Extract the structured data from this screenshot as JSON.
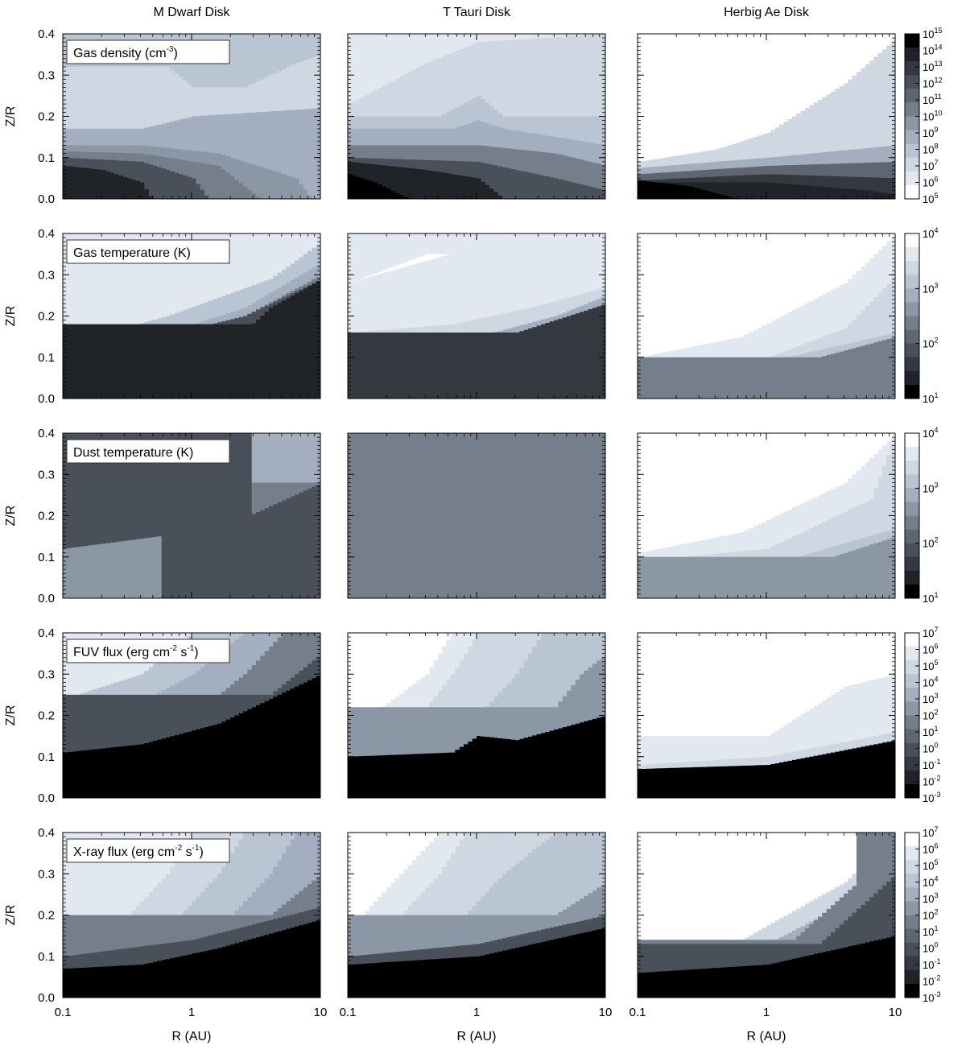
{
  "chart_data": {
    "type": "heatmap",
    "column_titles": [
      "M Dwarf Disk",
      "T Tauri Disk",
      "Herbig Ae Disk"
    ],
    "xlabel": "R (AU)",
    "ylabel": "Z/R",
    "x_scale": "log",
    "xlim": [
      0.1,
      10
    ],
    "ylim": [
      0.0,
      0.4
    ],
    "x_ticks": [
      "0.1",
      "1",
      "10"
    ],
    "y_ticks": [
      "0.0",
      "0.1",
      "0.2",
      "0.3",
      "0.4"
    ],
    "palette": [
      "#000000",
      "#202327",
      "#343940",
      "#4a5059",
      "#5f6672",
      "#757e8b",
      "#8c97a6",
      "#a3afbf",
      "#bac5d3",
      "#ced7e2",
      "#e2e8ef",
      "#ffffff"
    ],
    "rows": [
      {
        "label": {
          "base": "Gas density (cm",
          "sup": "-3",
          "tail": ")"
        },
        "colorbar": {
          "reverse": true,
          "levels": 12,
          "tick_labels": [
            {
              "base": "10",
              "exp": "15"
            },
            {
              "base": "10",
              "exp": "14"
            },
            {
              "base": "10",
              "exp": "13"
            },
            {
              "base": "10",
              "exp": "12"
            },
            {
              "base": "10",
              "exp": "11"
            },
            {
              "base": "10",
              "exp": "10"
            },
            {
              "base": "10",
              "exp": "9"
            },
            {
              "base": "10",
              "exp": "8"
            },
            {
              "base": "10",
              "exp": "7"
            },
            {
              "base": "10",
              "exp": "6"
            },
            {
              "base": "10",
              "exp": "5"
            }
          ]
        },
        "panels": [
          {
            "disk": "M Dwarf Disk",
            "surface_z": 0.4,
            "surface_z_at_1AU": 0.4,
            "surface_z_at_10AU": 0.4
          },
          {
            "disk": "T Tauri Disk",
            "surface_z": 0.4
          },
          {
            "disk": "Herbig Ae Disk",
            "surface_z_at_0_1AU": 0.09,
            "surface_z_at_1AU": 0.16,
            "surface_z_at_10AU": 0.39
          }
        ]
      },
      {
        "label": {
          "base": "Gas temperature (K)",
          "sup": "",
          "tail": ""
        },
        "colorbar": {
          "levels": 12,
          "tick_labels": [
            {
              "base": "10",
              "exp": "4"
            },
            {
              "base": "10",
              "exp": "3"
            },
            {
              "base": "10",
              "exp": "2"
            },
            {
              "base": "10",
              "exp": "1"
            }
          ]
        },
        "panels": [
          {
            "disk": "M Dwarf Disk",
            "surface_z_at_0_1AU": 0.13,
            "surface_z_at_10AU": 0.38
          },
          {
            "disk": "T Tauri Disk",
            "surface_z_at_0_1AU": 0.16,
            "surface_z_at_10AU": 0.27
          },
          {
            "disk": "Herbig Ae Disk",
            "surface_z_at_0_1AU": 0.1,
            "surface_z_at_10AU": 0.4
          }
        ]
      },
      {
        "label": {
          "base": "Dust temperature (K)",
          "sup": "",
          "tail": ""
        },
        "colorbar": {
          "levels": 12,
          "tick_labels": [
            {
              "base": "10",
              "exp": "4"
            },
            {
              "base": "10",
              "exp": "3"
            },
            {
              "base": "10",
              "exp": "2"
            },
            {
              "base": "10",
              "exp": "1"
            }
          ]
        },
        "panels": [
          {
            "disk": "M Dwarf Disk",
            "surface_z": 0.4
          },
          {
            "disk": "T Tauri Disk",
            "surface_z_at_0_1AU": 0.23,
            "surface_z_at_10AU": 0.4
          },
          {
            "disk": "Herbig Ae Disk",
            "surface_z_at_0_1AU": 0.11,
            "surface_z_at_10AU": 0.4
          }
        ]
      },
      {
        "label": {
          "base": "FUV flux (erg cm",
          "sup": "-2",
          "mid": " s",
          "sup2": "-1",
          "tail": ")"
        },
        "colorbar": {
          "levels": 12,
          "tick_labels": [
            {
              "base": "10",
              "exp": "7"
            },
            {
              "base": "10",
              "exp": "6"
            },
            {
              "base": "10",
              "exp": "5"
            },
            {
              "base": "10",
              "exp": "4"
            },
            {
              "base": "10",
              "exp": "3"
            },
            {
              "base": "10",
              "exp": "2"
            },
            {
              "base": "10",
              "exp": "1"
            },
            {
              "base": "10",
              "exp": "0"
            },
            {
              "base": "10",
              "exp": "-1"
            },
            {
              "base": "10",
              "exp": "-2"
            },
            {
              "base": "10",
              "exp": "-3"
            }
          ]
        },
        "panels": [
          {
            "disk": "M Dwarf Disk",
            "black_region_top_z_at_0_1AU": 0.11,
            "black_region_top_z_at_10AU": 0.3
          },
          {
            "disk": "T Tauri Disk",
            "black_region_top_z_at_0_1AU": 0.1,
            "black_region_top_z_at_10AU": 0.2
          },
          {
            "disk": "Herbig Ae Disk",
            "black_region_top_z_at_0_1AU": 0.07,
            "black_region_top_z_at_10AU": 0.14
          }
        ]
      },
      {
        "label": {
          "base": "X-ray flux (erg cm",
          "sup": "-2",
          "mid": " s",
          "sup2": "-1",
          "tail": ")"
        },
        "colorbar": {
          "levels": 12,
          "tick_labels": [
            {
              "base": "10",
              "exp": "7"
            },
            {
              "base": "10",
              "exp": "6"
            },
            {
              "base": "10",
              "exp": "5"
            },
            {
              "base": "10",
              "exp": "4"
            },
            {
              "base": "10",
              "exp": "3"
            },
            {
              "base": "10",
              "exp": "2"
            },
            {
              "base": "10",
              "exp": "1"
            },
            {
              "base": "10",
              "exp": "0"
            },
            {
              "base": "10",
              "exp": "-1"
            },
            {
              "base": "10",
              "exp": "-2"
            },
            {
              "base": "10",
              "exp": "-3"
            }
          ]
        },
        "panels": [
          {
            "disk": "M Dwarf Disk",
            "black_region_top_z_at_0_1AU": 0.07,
            "black_region_top_z_at_10AU": 0.19
          },
          {
            "disk": "T Tauri Disk",
            "black_region_top_z_at_0_1AU": 0.08,
            "black_region_top_z_at_10AU": 0.17
          },
          {
            "disk": "Herbig Ae Disk",
            "surface_z_at_0_1AU": 0.09,
            "surface_z_at_10AU": 0.4,
            "black_region_top_z_at_0_1AU": 0.06,
            "black_region_top_z_at_10AU": 0.15
          }
        ]
      }
    ]
  }
}
